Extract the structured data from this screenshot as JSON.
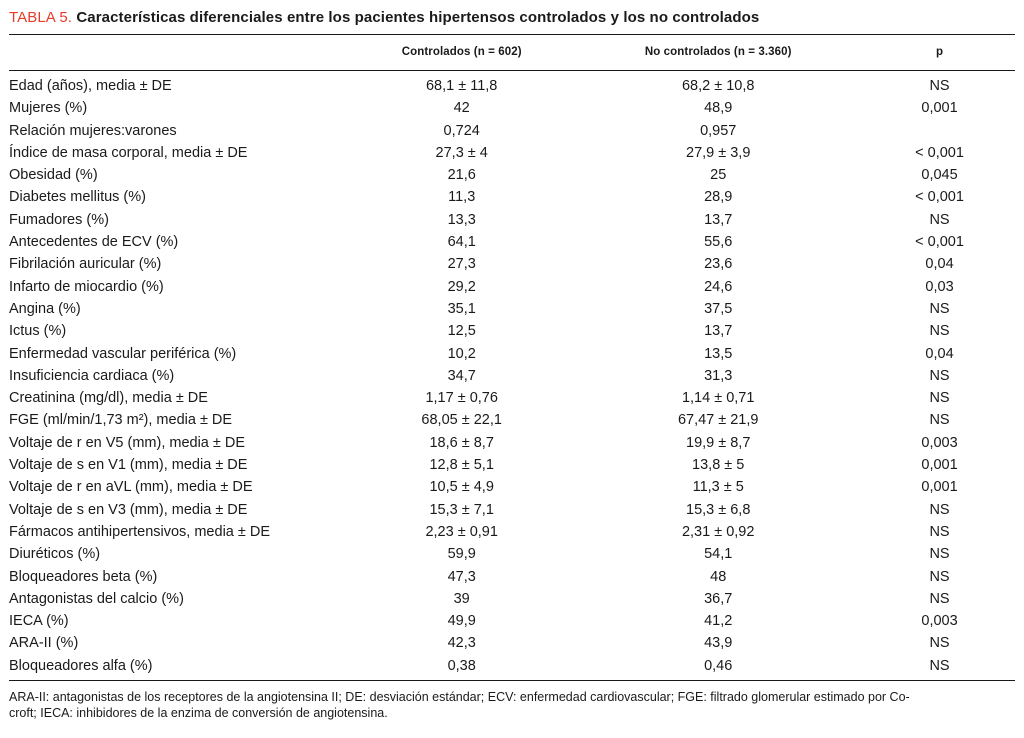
{
  "accent_color": "#e63c2a",
  "table": {
    "label": "TABLA 5.",
    "title": "Características diferenciales entre los pacientes hipertensos controlados y los no controlados",
    "columns": {
      "rowhead": "",
      "c1": "Controlados (n = 602)",
      "c2": "No controlados (n = 3.360)",
      "p": "p"
    },
    "rows": [
      [
        "Edad (años), media ± DE",
        "68,1 ± 11,8",
        "68,2 ± 10,8",
        "NS"
      ],
      [
        "Mujeres (%)",
        "42",
        "48,9",
        "0,001"
      ],
      [
        "Relación mujeres:varones",
        "0,724",
        "0,957",
        ""
      ],
      [
        "Índice de masa corporal, media ± DE",
        "27,3 ± 4",
        "27,9 ± 3,9",
        "< 0,001"
      ],
      [
        "Obesidad (%)",
        "21,6",
        "25",
        "0,045"
      ],
      [
        "Diabetes mellitus (%)",
        "11,3",
        "28,9",
        "< 0,001"
      ],
      [
        "Fumadores (%)",
        "13,3",
        "13,7",
        "NS"
      ],
      [
        "Antecedentes de ECV (%)",
        "64,1",
        "55,6",
        "< 0,001"
      ],
      [
        "Fibrilación auricular (%)",
        "27,3",
        "23,6",
        "0,04"
      ],
      [
        "Infarto de miocardio (%)",
        "29,2",
        "24,6",
        "0,03"
      ],
      [
        "Angina (%)",
        "35,1",
        "37,5",
        "NS"
      ],
      [
        "Ictus (%)",
        "12,5",
        "13,7",
        "NS"
      ],
      [
        "Enfermedad vascular periférica (%)",
        "10,2",
        "13,5",
        "0,04"
      ],
      [
        "Insuficiencia cardiaca (%)",
        "34,7",
        "31,3",
        "NS"
      ],
      [
        "Creatinina (mg/dl), media ± DE",
        "1,17 ± 0,76",
        "1,14 ± 0,71",
        "NS"
      ],
      [
        "FGE (ml/min/1,73 m²), media ± DE",
        "68,05 ± 22,1",
        "67,47 ± 21,9",
        "NS"
      ],
      [
        "Voltaje de r en V5 (mm), media ± DE",
        "18,6 ± 8,7",
        "19,9 ± 8,7",
        "0,003"
      ],
      [
        "Voltaje de s en V1 (mm), media ± DE",
        "12,8 ± 5,1",
        "13,8 ± 5",
        "0,001"
      ],
      [
        "Voltaje de r en aVL (mm), media ± DE",
        "10,5 ± 4,9",
        "11,3 ± 5",
        "0,001"
      ],
      [
        "Voltaje de s en V3 (mm), media ± DE",
        "15,3 ± 7,1",
        "15,3 ± 6,8",
        "NS"
      ],
      [
        "Fármacos antihipertensivos, media ± DE",
        "2,23 ± 0,91",
        "2,31 ± 0,92",
        "NS"
      ],
      [
        "Diuréticos (%)",
        "59,9",
        "54,1",
        "NS"
      ],
      [
        "Bloqueadores beta (%)",
        "47,3",
        "48",
        "NS"
      ],
      [
        "Antagonistas del calcio (%)",
        "39",
        "36,7",
        "NS"
      ],
      [
        "IECA (%)",
        "49,9",
        "41,2",
        "0,003"
      ],
      [
        "ARA-II (%)",
        "42,3",
        "43,9",
        "NS"
      ],
      [
        "Bloqueadores alfa (%)",
        "0,38",
        "0,46",
        "NS"
      ]
    ],
    "footnote_lines": [
      "ARA-II: antagonistas de los receptores de la angiotensina II; DE: desviación estándar; ECV: enfermedad cardiovascular; FGE: filtrado glomerular estimado por Co-",
      "croft; IECA: inhibidores de la enzima de conversión de angiotensina."
    ]
  }
}
